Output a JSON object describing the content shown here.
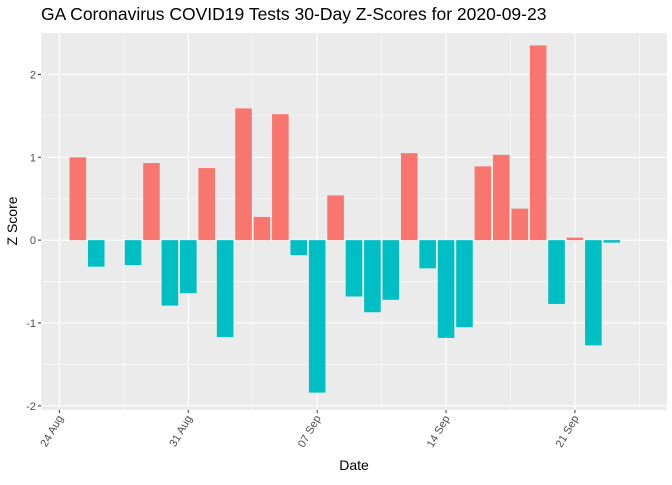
{
  "chart_data": {
    "type": "bar",
    "title": "GA Coronavirus COVID19 Tests 30-Day Z-Scores for 2020-09-23",
    "xlabel": "Date",
    "ylabel": "Z Score",
    "x_tick_labels": [
      "24 Aug",
      "31 Aug",
      "07 Sep",
      "14 Sep",
      "21 Sep"
    ],
    "x_tick_dates": [
      "2020-08-24",
      "2020-08-31",
      "2020-09-07",
      "2020-09-14",
      "2020-09-21"
    ],
    "y_ticks": [
      -2,
      -1,
      0,
      1,
      2
    ],
    "xlim": [
      "2020-08-23",
      "2020-09-26"
    ],
    "ylim": [
      -2.05,
      2.5
    ],
    "grid": true,
    "legend": "none",
    "colors": {
      "positive": "#F8766D",
      "negative": "#00BFC4",
      "panel": "#EBEBEB",
      "grid": "#FFFFFF"
    },
    "dates": [
      "2020-08-25",
      "2020-08-26",
      "2020-08-27",
      "2020-08-28",
      "2020-08-29",
      "2020-08-30",
      "2020-08-31",
      "2020-09-01",
      "2020-09-02",
      "2020-09-03",
      "2020-09-04",
      "2020-09-05",
      "2020-09-06",
      "2020-09-07",
      "2020-09-08",
      "2020-09-09",
      "2020-09-10",
      "2020-09-11",
      "2020-09-12",
      "2020-09-13",
      "2020-09-14",
      "2020-09-15",
      "2020-09-16",
      "2020-09-17",
      "2020-09-18",
      "2020-09-19",
      "2020-09-20",
      "2020-09-21",
      "2020-09-22",
      "2020-09-23"
    ],
    "values": [
      1.0,
      -0.32,
      null,
      -0.3,
      0.93,
      -0.79,
      -0.64,
      0.87,
      -1.17,
      1.59,
      0.28,
      1.52,
      -0.18,
      -1.84,
      0.54,
      -0.68,
      -0.87,
      -0.72,
      1.05,
      -0.34,
      -1.18,
      -1.05,
      0.89,
      1.03,
      0.38,
      2.35,
      -0.77,
      0.03,
      -1.27,
      -0.03
    ]
  }
}
